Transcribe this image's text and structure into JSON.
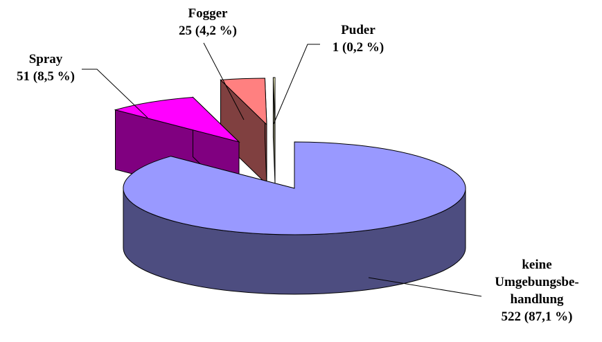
{
  "chart_data": {
    "type": "pie",
    "three_d": true,
    "exploded": true,
    "legend": "none",
    "slices": [
      {
        "name": "keine Umgebungsbehandlung",
        "label_lines": [
          "keine",
          "Umgebungsbe-",
          "handlung"
        ],
        "value": 522,
        "value_label": "522 (87,1 %)",
        "top_color": "#9999ff",
        "side_color": "#4d4d80"
      },
      {
        "name": "Spray",
        "label_lines": [
          "Spray"
        ],
        "value": 51,
        "value_label": "51 (8,5 %)",
        "top_color": "#ff00ff",
        "side_color": "#800080"
      },
      {
        "name": "Fogger",
        "label_lines": [
          "Fogger"
        ],
        "value": 25,
        "value_label": "25 (4,2 %)",
        "top_color": "#ff8080",
        "side_color": "#804040"
      },
      {
        "name": "Puder",
        "label_lines": [
          "Puder"
        ],
        "value": 1,
        "value_label": "1 (0,2 %)",
        "top_color": "#ffffcc",
        "side_color": "#808066"
      }
    ]
  }
}
